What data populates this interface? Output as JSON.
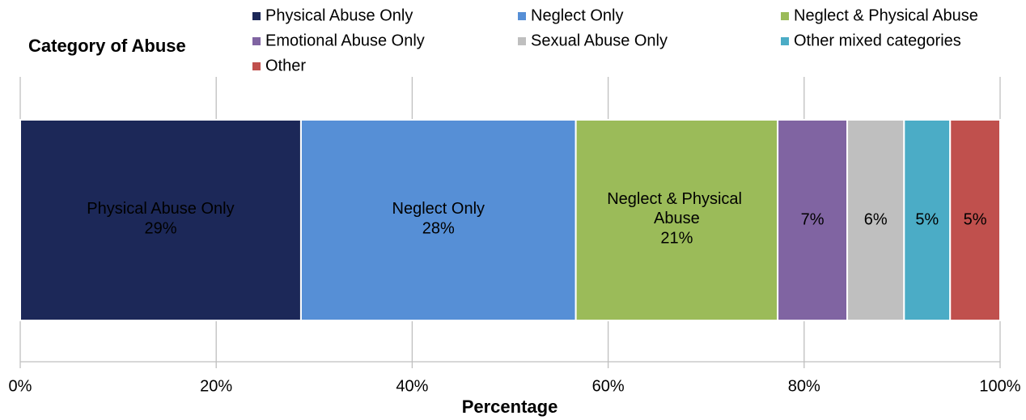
{
  "chart_data": {
    "type": "stacked-bar-h",
    "title": "Category of Abuse",
    "x_label": "Percentage",
    "xlim": [
      0,
      100
    ],
    "xticks": [
      {
        "value": 0,
        "label": "0%"
      },
      {
        "value": 20,
        "label": "20%"
      },
      {
        "value": 40,
        "label": "40%"
      },
      {
        "value": 60,
        "label": "60%"
      },
      {
        "value": 80,
        "label": "80%"
      },
      {
        "value": 100,
        "label": "100%"
      }
    ],
    "grid": true,
    "legend": "top",
    "series": [
      {
        "name": "Physical Abuse Only",
        "color": "#1c2858",
        "values": [
          28.65
        ],
        "value_labels": [
          "29%"
        ],
        "label_name": true
      },
      {
        "name": "Neglect Only",
        "color": "#568fd6",
        "values": [
          28.05
        ],
        "value_labels": [
          "28%"
        ],
        "label_name": true
      },
      {
        "name": "Neglect & Physical Abuse",
        "color": "#9bbb59",
        "values": [
          20.6
        ],
        "value_labels": [
          "21%"
        ],
        "label_name": true
      },
      {
        "name": "Emotional Abuse Only",
        "color": "#8064a2",
        "values": [
          7.1
        ],
        "value_labels": [
          "7%"
        ],
        "label_name": false
      },
      {
        "name": "Sexual Abuse Only",
        "color": "#bfbfbf",
        "values": [
          5.8
        ],
        "value_labels": [
          "6%"
        ],
        "label_name": false
      },
      {
        "name": "Other mixed categories",
        "color": "#4bacc6",
        "values": [
          4.7
        ],
        "value_labels": [
          "5%"
        ],
        "label_name": false
      },
      {
        "name": "Other",
        "color": "#c0504d",
        "values": [
          5.1
        ],
        "value_labels": [
          "5%"
        ],
        "label_name": false
      }
    ]
  }
}
